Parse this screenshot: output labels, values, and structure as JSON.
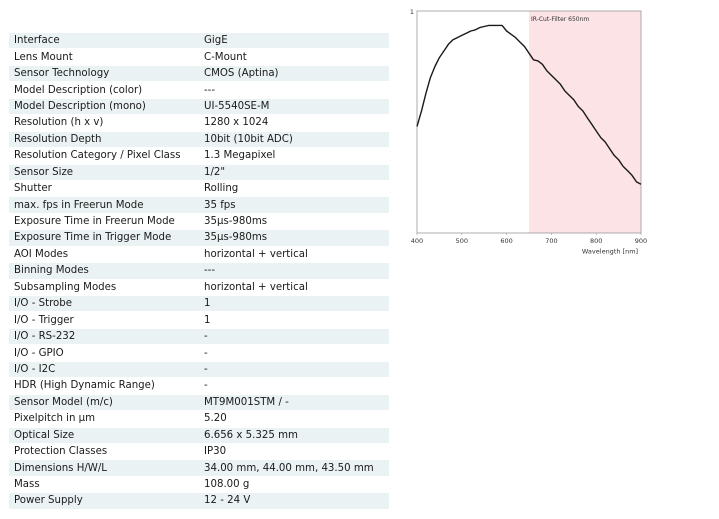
{
  "specs": [
    {
      "label": "Interface",
      "value": "GigE"
    },
    {
      "label": "Lens Mount",
      "value": "C-Mount"
    },
    {
      "label": "Sensor Technology",
      "value": "CMOS (Aptina)"
    },
    {
      "label": "Model Description (color)",
      "value": "---"
    },
    {
      "label": "Model Description (mono)",
      "value": "UI-5540SE-M"
    },
    {
      "label": "Resolution (h x v)",
      "value": "1280 x 1024"
    },
    {
      "label": "Resolution Depth",
      "value": "10bit (10bit ADC)"
    },
    {
      "label": "Resolution Category / Pixel Class",
      "value": "1.3 Megapixel"
    },
    {
      "label": "Sensor Size",
      "value": "1/2\""
    },
    {
      "label": "Shutter",
      "value": "Rolling"
    },
    {
      "label": "max. fps in Freerun Mode",
      "value": "35 fps"
    },
    {
      "label": "Exposure Time in Freerun Mode",
      "value": "35μs-980ms"
    },
    {
      "label": "Exposure Time in Trigger Mode",
      "value": "35μs-980ms"
    },
    {
      "label": "AOI Modes",
      "value": "horizontal + vertical"
    },
    {
      "label": "Binning Modes",
      "value": "---"
    },
    {
      "label": "Subsampling Modes",
      "value": "horizontal + vertical"
    },
    {
      "label": "I/O - Strobe",
      "value": "1"
    },
    {
      "label": "I/O - Trigger",
      "value": "1"
    },
    {
      "label": "I/O - RS-232",
      "value": "-"
    },
    {
      "label": "I/O - GPIO",
      "value": "-"
    },
    {
      "label": "I/O - I2C",
      "value": "-"
    },
    {
      "label": "HDR (High Dynamic Range)",
      "value": "-"
    },
    {
      "label": "Sensor Model (m/c)",
      "value": "MT9M001STM / -"
    },
    {
      "label": "Pixelpitch in μm",
      "value": "5.20"
    },
    {
      "label": "Optical Size",
      "value": "6.656 x 5.325 mm"
    },
    {
      "label": "Protection Classes",
      "value": "IP30"
    },
    {
      "label": "Dimensions H/W/L",
      "value": "34.00 mm, 44.00 mm, 43.50 mm"
    },
    {
      "label": "Mass",
      "value": "108.00 g"
    },
    {
      "label": "Power Supply",
      "value": "12 - 24 V"
    }
  ],
  "chart_data": {
    "type": "line",
    "xlabel": "Wavelength [nm]",
    "ylabel": "",
    "xlim": [
      400,
      900
    ],
    "ylim": [
      0,
      1
    ],
    "x_ticks": [
      "400",
      "500",
      "600",
      "700",
      "800",
      "900"
    ],
    "y_ticks": [
      "1"
    ],
    "grid": false,
    "shaded_region": {
      "x": [
        650,
        900
      ],
      "label": "IR-Cut-Filter 650nm",
      "color": "#fbe3e6"
    },
    "series": [
      {
        "x": [
          400,
          410,
          420,
          430,
          440,
          450,
          460,
          470,
          480,
          490,
          500,
          510,
          520,
          530,
          540,
          550,
          560,
          570,
          580,
          590,
          600,
          610,
          620,
          630,
          640,
          650,
          660,
          670,
          680,
          690,
          700,
          710,
          720,
          730,
          740,
          750,
          760,
          770,
          780,
          790,
          800,
          810,
          820,
          830,
          840,
          850,
          860,
          870,
          880,
          890,
          900
        ],
        "y": [
          0.48,
          0.55,
          0.63,
          0.7,
          0.75,
          0.79,
          0.82,
          0.85,
          0.87,
          0.88,
          0.89,
          0.9,
          0.91,
          0.915,
          0.925,
          0.93,
          0.935,
          0.935,
          0.935,
          0.935,
          0.91,
          0.895,
          0.88,
          0.86,
          0.84,
          0.81,
          0.78,
          0.775,
          0.76,
          0.73,
          0.71,
          0.69,
          0.67,
          0.64,
          0.62,
          0.6,
          0.57,
          0.55,
          0.52,
          0.49,
          0.46,
          0.43,
          0.41,
          0.38,
          0.35,
          0.33,
          0.3,
          0.28,
          0.26,
          0.23,
          0.22
        ]
      }
    ],
    "line_color": "#1a1a1a",
    "frame_color": "#999999"
  }
}
